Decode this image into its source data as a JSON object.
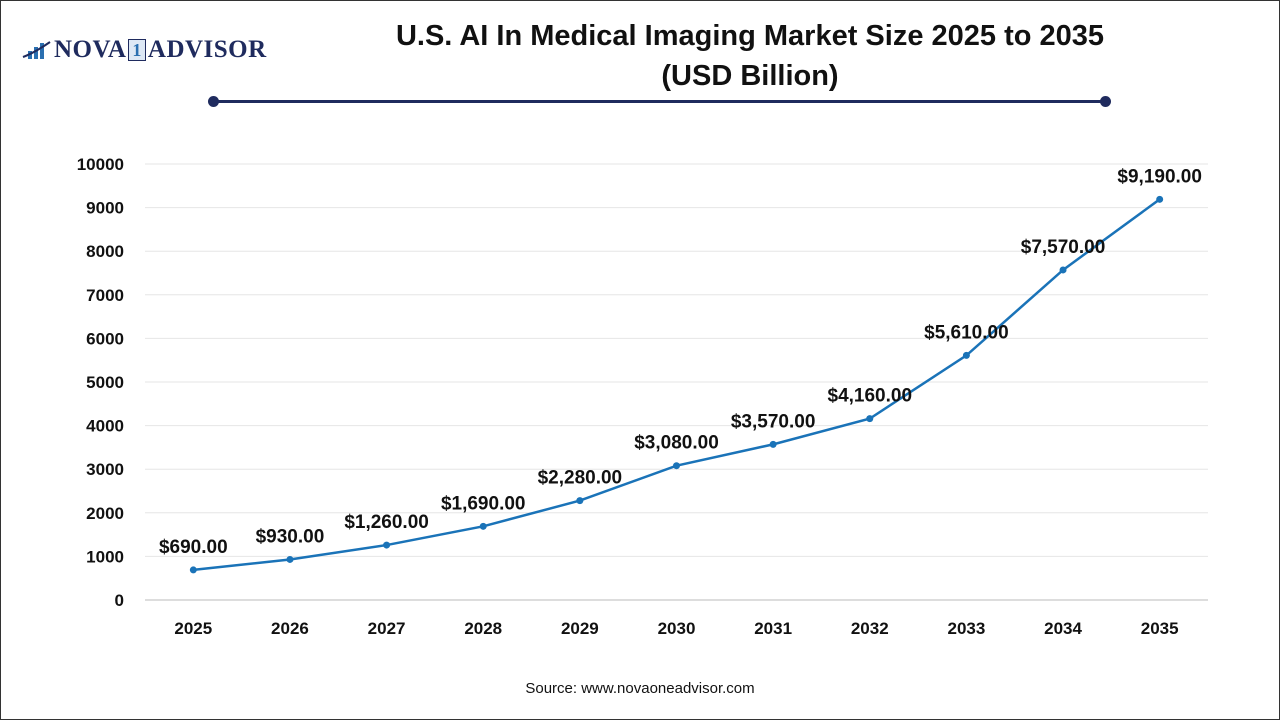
{
  "logo": {
    "text_left": "NOVA",
    "text_one": "1",
    "text_right": "ADVISOR"
  },
  "title_line1": "U.S. AI In Medical Imaging Market Size 2025 to 2035",
  "title_line2": "(USD Billion)",
  "source": "Source: www.novaoneadvisor.com",
  "colors": {
    "line": "#1a73b8",
    "title_rule": "#1f2b5e",
    "grid": "#e6e6e6"
  },
  "chart_data": {
    "type": "line",
    "title": "U.S. AI In Medical Imaging Market Size 2025 to 2035 (USD Billion)",
    "categories": [
      "2025",
      "2026",
      "2027",
      "2028",
      "2029",
      "2030",
      "2031",
      "2032",
      "2033",
      "2034",
      "2035"
    ],
    "series": [
      {
        "values": [
          690,
          930,
          1260,
          1690,
          2280,
          3080,
          3570,
          4160,
          5610,
          7570,
          9190
        ]
      }
    ],
    "data_labels": [
      "$690.00",
      "$930.00",
      "$1,260.00",
      "$1,690.00",
      "$2,280.00",
      "$3,080.00",
      "$3,570.00",
      "$4,160.00",
      "$5,610.00",
      "$7,570.00",
      "$9,190.00"
    ],
    "ylim": [
      0,
      10000
    ],
    "yticks": [
      0,
      1000,
      2000,
      3000,
      4000,
      5000,
      6000,
      7000,
      8000,
      9000,
      10000
    ],
    "grid": true,
    "xlabel": "",
    "ylabel": ""
  }
}
